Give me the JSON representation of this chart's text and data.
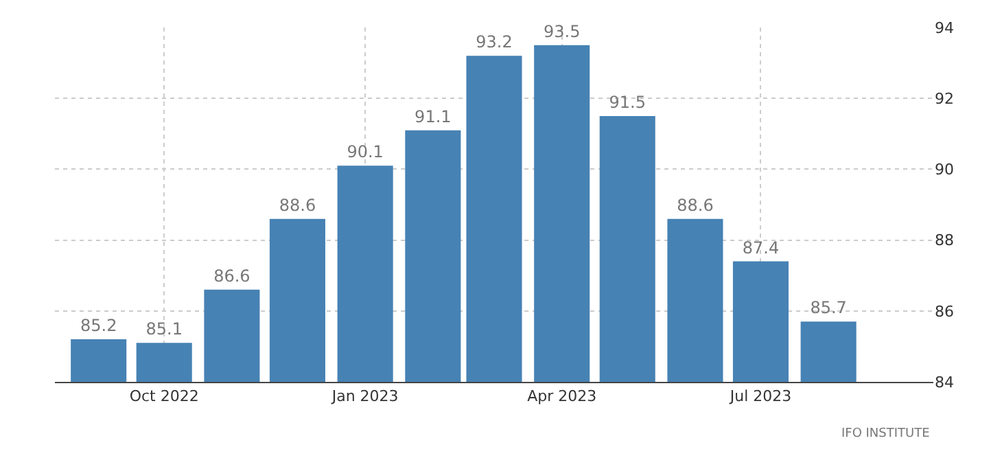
{
  "chart_data": {
    "type": "bar",
    "x": [
      "2022-09",
      "2022-10",
      "2022-11",
      "2022-12",
      "2023-01",
      "2023-02",
      "2023-03",
      "2023-04",
      "2023-05",
      "2023-06",
      "2023-07",
      "2023-08"
    ],
    "values": [
      85.2,
      85.1,
      86.6,
      88.6,
      90.1,
      91.1,
      93.2,
      93.5,
      91.5,
      88.6,
      87.4,
      85.7
    ],
    "color": "#4682b4",
    "data_labels": true,
    "xlim": [
      "2022-08-12",
      "2023-09-18"
    ],
    "xticks": [
      {
        "value": "2022-10",
        "label": "Oct 2022"
      },
      {
        "value": "2023-01",
        "label": "Jan 2023"
      },
      {
        "value": "2023-04",
        "label": "Apr 2023"
      },
      {
        "value": "2023-07",
        "label": "Jul 2023"
      }
    ],
    "ylim": [
      84,
      94
    ],
    "yticks": [
      84,
      86,
      88,
      90,
      92,
      94
    ],
    "grid": true,
    "annotations": [
      "IFO INSTITUTE"
    ]
  }
}
